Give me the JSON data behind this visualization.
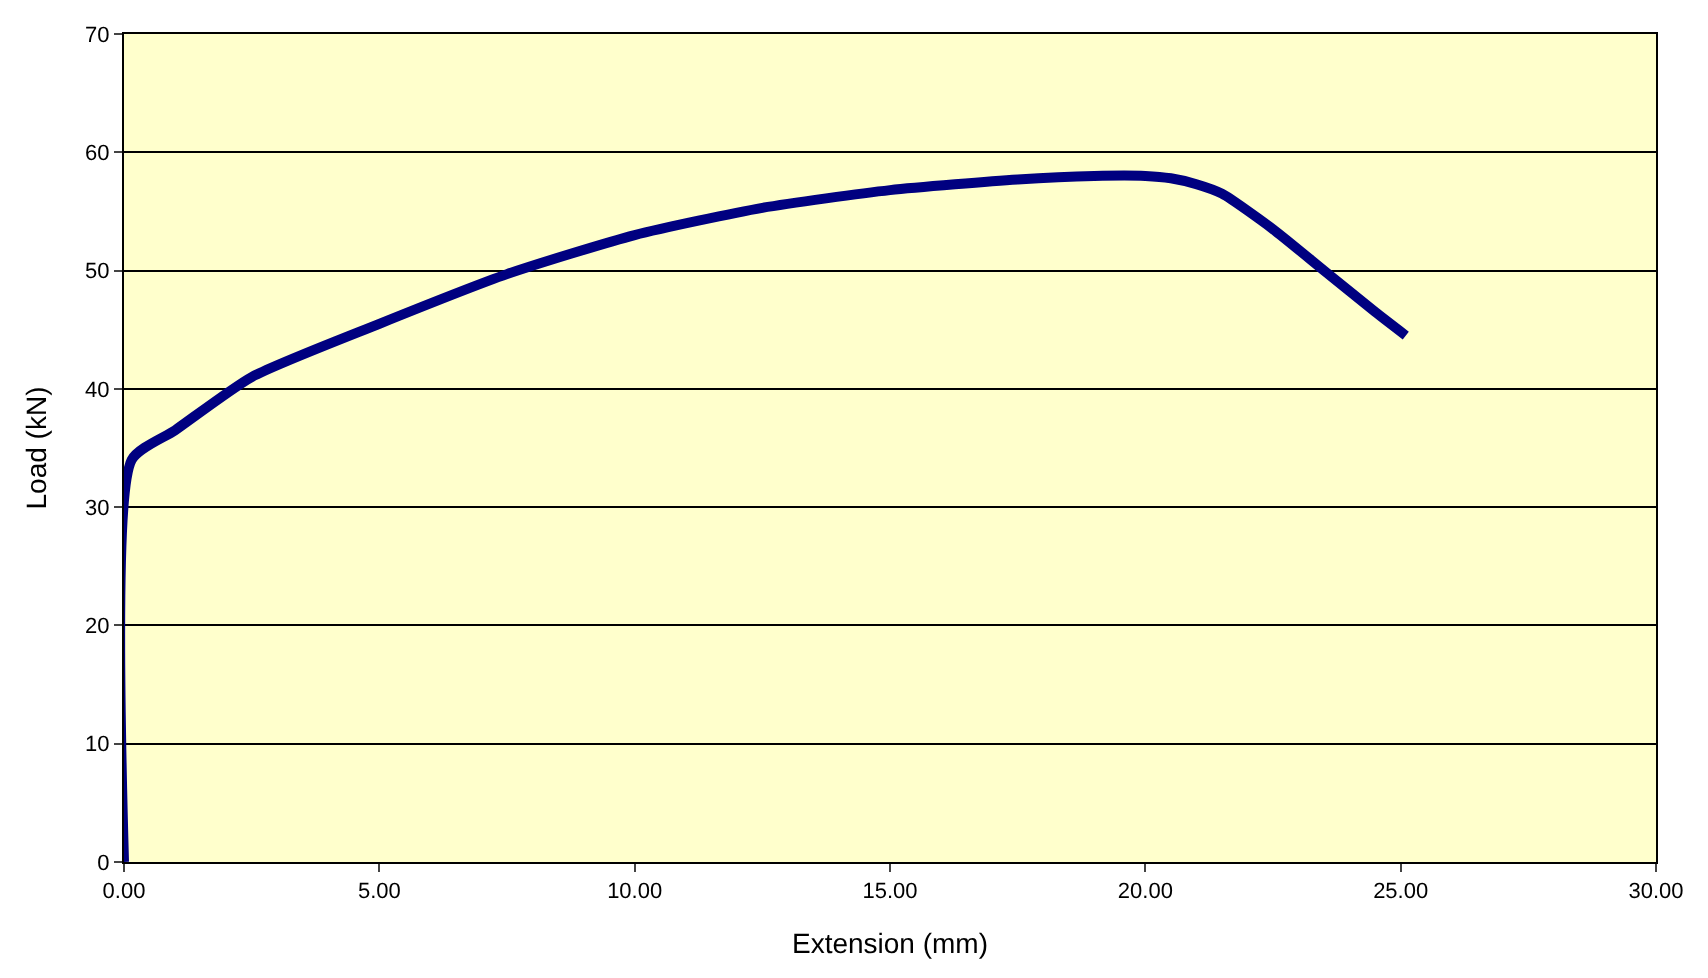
{
  "chart_data": {
    "type": "line",
    "xlabel": "Extension (mm)",
    "ylabel": "Load (kN)",
    "xlim": [
      0,
      30
    ],
    "xticks": [
      {
        "value": 0,
        "label": "0.00"
      },
      {
        "value": 5,
        "label": "5.00"
      },
      {
        "value": 10,
        "label": "10.00"
      },
      {
        "value": 15,
        "label": "15.00"
      },
      {
        "value": 20,
        "label": "20.00"
      },
      {
        "value": 25,
        "label": "25.00"
      },
      {
        "value": 30,
        "label": "30.00"
      }
    ],
    "ylim": [
      0,
      70
    ],
    "yticks": [
      0,
      10,
      20,
      30,
      40,
      50,
      60,
      70
    ],
    "grid": "y",
    "legend": false,
    "marker": "none",
    "line_style": "solid",
    "series": [
      {
        "color": "#000080",
        "x": [
          0,
          0.15,
          1,
          2.5,
          5,
          7.5,
          10,
          12.5,
          15,
          17.5,
          19,
          20,
          20.5,
          21,
          21.5,
          22.5,
          23.5,
          24.5,
          25.1
        ],
        "values": [
          0,
          34,
          36.5,
          41,
          45.5,
          49.7,
          53,
          55.3,
          56.8,
          57.7,
          58,
          58,
          57.8,
          57.3,
          56.5,
          53.5,
          50,
          46.5,
          44.5
        ]
      }
    ]
  }
}
